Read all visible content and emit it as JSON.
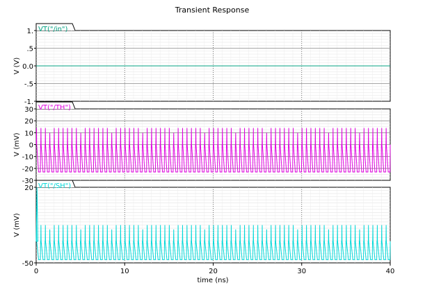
{
  "title": "Transient Response",
  "xlabel": "time (ns)",
  "chart_data": [
    {
      "type": "line",
      "title": "Transient Response",
      "xlabel": "time (ns)",
      "ylabel": "V (V)",
      "xlim": [
        0,
        40
      ],
      "ylim": [
        -1.0,
        1.0
      ],
      "xticks": [
        "0",
        "10",
        "20",
        "30",
        "40"
      ],
      "yticks": [
        {
          "value": 1.0,
          "label": "1."
        },
        {
          "value": 0.5,
          "label": ".5"
        },
        {
          "value": 0.0,
          "label": "0.0"
        },
        {
          "value": -0.5,
          "label": "-.5"
        },
        {
          "value": -1.0,
          "label": "-1."
        }
      ],
      "grid": true,
      "series": [
        {
          "name": "VT(\"/in\")",
          "color": "#00a080",
          "kind": "flat",
          "x": [
            0,
            40
          ],
          "y": [
            0,
            0
          ]
        }
      ]
    },
    {
      "type": "line",
      "xlabel": "time (ns)",
      "ylabel": "V (mV)",
      "xlim": [
        0,
        40
      ],
      "ylim": [
        -30,
        30
      ],
      "xticks": [
        "0",
        "10",
        "20",
        "30",
        "40"
      ],
      "yticks": [
        {
          "value": 30,
          "label": "30"
        },
        {
          "value": 20,
          "label": "20"
        },
        {
          "value": 10,
          "label": "10"
        },
        {
          "value": 0,
          "label": "0"
        },
        {
          "value": -10,
          "label": "-10"
        },
        {
          "value": -20,
          "label": "-20"
        },
        {
          "value": -30,
          "label": "-30"
        }
      ],
      "grid": true,
      "series": [
        {
          "name": "VT(\"/TH\")",
          "color": "#e000e0",
          "kind": "pulse",
          "period_ns": 0.5,
          "high": 14,
          "low": -23,
          "baseline": 0
        }
      ]
    },
    {
      "type": "line",
      "xlabel": "time (ns)",
      "ylabel": "V (mV)",
      "xlim": [
        0,
        40
      ],
      "ylim": [
        -50,
        20
      ],
      "xticks": [
        "0",
        "10",
        "20",
        "30",
        "40"
      ],
      "yticks": [
        {
          "value": 20,
          "label": "20"
        },
        {
          "value": -50,
          "label": "-50"
        }
      ],
      "grid": true,
      "series": [
        {
          "name": "VT(\"/SH\")",
          "color": "#00d8d8",
          "kind": "pulse",
          "period_ns": 0.5,
          "high": -15,
          "low": -47,
          "baseline": -30,
          "initial_spike": 20
        }
      ]
    }
  ]
}
